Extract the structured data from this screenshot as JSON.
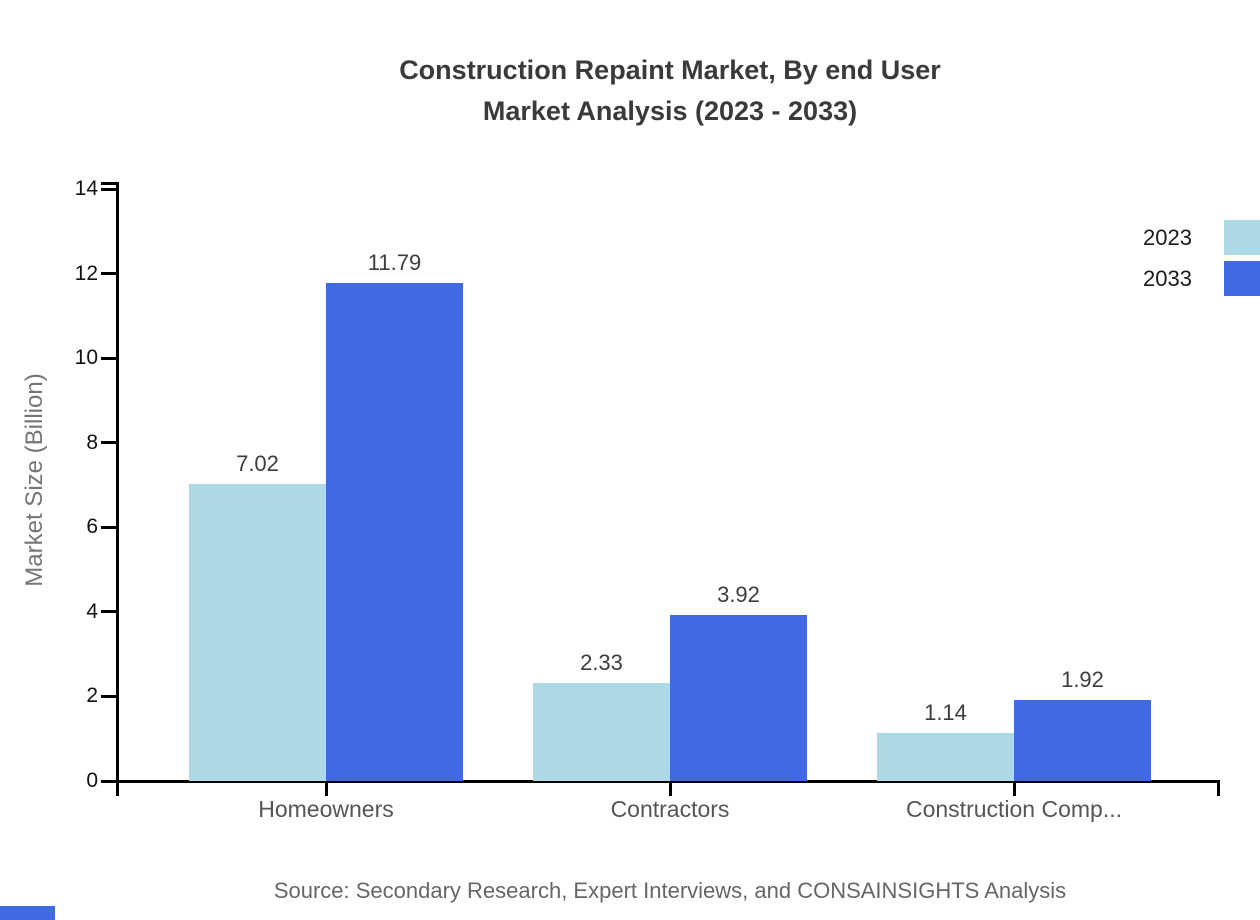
{
  "title": {
    "line1": "Construction Repaint Market, By end User",
    "line2": "Market Analysis (2023 - 2033)"
  },
  "source": "Source: Secondary Research, Expert Interviews, and CONSAINSIGHTS Analysis",
  "chart_data": {
    "type": "bar",
    "categories": [
      "Homeowners",
      "Contractors",
      "Construction Comp..."
    ],
    "series": [
      {
        "name": "2023",
        "color": "#ADD8E6",
        "values": [
          7.02,
          2.33,
          1.14
        ]
      },
      {
        "name": "2033",
        "color": "#4169E1",
        "values": [
          11.79,
          3.92,
          1.92
        ]
      }
    ],
    "data_labels": [
      "7.02",
      "11.79",
      "2.33",
      "3.92",
      "1.14",
      "1.92"
    ],
    "title": "Construction Repaint Market, By end User Market Analysis (2023 - 2033)",
    "xlabel": "",
    "ylabel": "Market Size (Billion)",
    "ylim": [
      0,
      14
    ],
    "yticks": [
      0,
      2,
      4,
      6,
      8,
      10,
      12,
      14
    ],
    "grid": false,
    "legend_position": "top-right"
  },
  "colors": {
    "series_2023": "#ADD8E6",
    "series_2033": "#4169E1",
    "axis": "#000000",
    "title_text": "#3a3a3a",
    "category_text": "#555555",
    "muted_text": "#757575",
    "source_text": "#666666",
    "brand_accent": "#4169E1"
  }
}
